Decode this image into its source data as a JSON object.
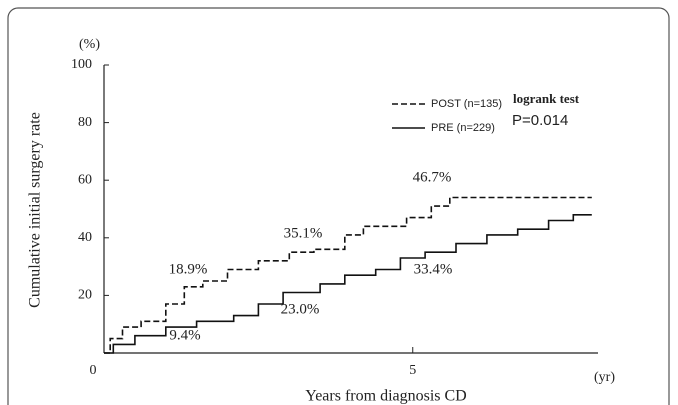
{
  "chart_data": {
    "type": "line",
    "y_unit": "(%)",
    "x_unit": "(yr)",
    "xlabel": "Years from diagnosis CD",
    "ylabel": "Cumulative initial surgery rate",
    "xlim": [
      0,
      8
    ],
    "xticks": [
      0,
      5
    ],
    "ylim": [
      0,
      100
    ],
    "yticks": [
      20,
      40,
      60,
      80,
      100
    ],
    "series": [
      {
        "name": "POST (n=135)",
        "color": "#111",
        "dashed": true,
        "x": [
          0,
          0.1,
          0.1,
          0.3,
          0.3,
          0.6,
          0.6,
          1.0,
          1.0,
          1.3,
          1.3,
          1.6,
          1.6,
          2.0,
          2.0,
          2.5,
          2.5,
          3.0,
          3.0,
          3.4,
          3.4,
          3.9,
          3.9,
          4.2,
          4.2,
          4.9,
          4.9,
          5.3,
          5.3,
          5.6,
          5.6,
          7.9
        ],
        "values": [
          0,
          0,
          5,
          5,
          9,
          9,
          11,
          11,
          17,
          17,
          23,
          23,
          25,
          25,
          29,
          29,
          32,
          32,
          35,
          35,
          36,
          36,
          41,
          41,
          44,
          44,
          47,
          47,
          51,
          51,
          54,
          54
        ]
      },
      {
        "name": "PRE (n=229)",
        "color": "#111",
        "dashed": false,
        "x": [
          0,
          0.15,
          0.15,
          0.5,
          0.5,
          1.0,
          1.0,
          1.5,
          1.5,
          2.1,
          2.1,
          2.5,
          2.5,
          2.9,
          2.9,
          3.5,
          3.5,
          3.9,
          3.9,
          4.4,
          4.4,
          4.8,
          4.8,
          5.2,
          5.2,
          5.7,
          5.7,
          6.2,
          6.2,
          6.7,
          6.7,
          7.2,
          7.2,
          7.6,
          7.6,
          7.9
        ],
        "values": [
          0,
          0,
          3,
          3,
          6,
          6,
          9,
          9,
          11,
          11,
          13,
          13,
          17,
          17,
          21,
          21,
          24,
          24,
          27,
          27,
          29,
          29,
          33,
          33,
          35,
          35,
          38,
          38,
          41,
          41,
          43,
          43,
          46,
          46,
          48,
          48
        ]
      }
    ],
    "annotations": [
      "18.9%",
      "35.1%",
      "46.7%",
      "9.4%",
      "23.0%",
      "33.4%"
    ],
    "test_title": "logrank test",
    "test_result": "P=0.014"
  }
}
